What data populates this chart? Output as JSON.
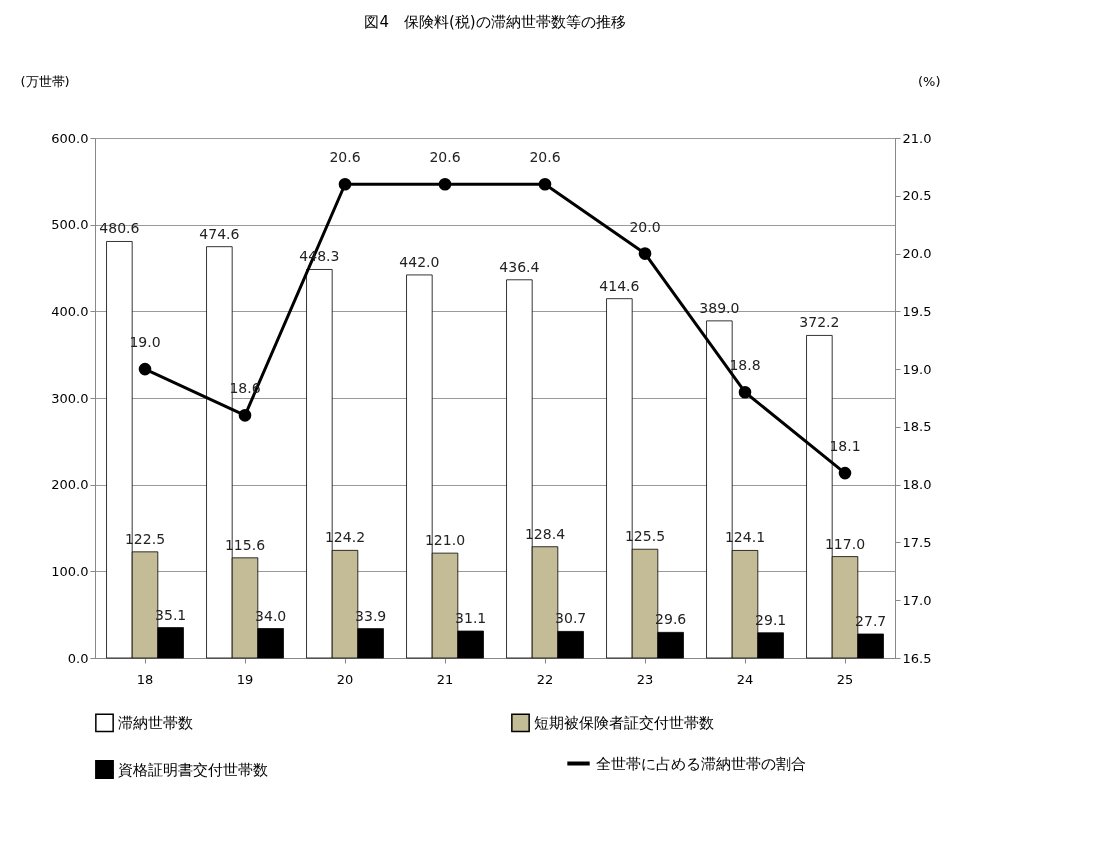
{
  "chart_data": {
    "type": "bar",
    "title": "図4　保険料(税)の滞納世帯数等の推移",
    "ylabel": "(万世帯)",
    "y2label": "(%)",
    "categories": [
      "18",
      "19",
      "20",
      "21",
      "22",
      "23",
      "24",
      "25"
    ],
    "series": [
      {
        "name": "滞納世帯数",
        "color": "#ffffff",
        "values": [
          480.6,
          474.6,
          448.3,
          442.0,
          436.4,
          414.6,
          389.0,
          372.2
        ],
        "value_labels": [
          "480.6",
          "474.6",
          "448.3",
          "442.0",
          "436.4",
          "414.6",
          "389.0",
          "372.2"
        ]
      },
      {
        "name": "短期被保険者証交付世帯数",
        "color": "#c4bc96",
        "values": [
          122.5,
          115.6,
          124.2,
          121.0,
          128.4,
          125.5,
          124.1,
          117.0
        ],
        "value_labels": [
          "122.5",
          "115.6",
          "124.2",
          "121.0",
          "128.4",
          "125.5",
          "124.1",
          "117.0"
        ]
      },
      {
        "name": "資格証明書交付世帯数",
        "color": "#000000",
        "values": [
          35.1,
          34.0,
          33.9,
          31.1,
          30.7,
          29.6,
          29.1,
          27.7
        ],
        "value_labels": [
          "35.1",
          "34.0",
          "33.9",
          "31.1",
          "30.7",
          "29.6",
          "29.1",
          "27.7"
        ]
      },
      {
        "name": "全世帯に占める滞納世帯の割合",
        "type": "line",
        "axis": "y2",
        "color": "#000000",
        "marker": "circle",
        "line_style": "solid",
        "values": [
          19.0,
          18.6,
          20.6,
          20.6,
          20.6,
          20.0,
          18.8,
          18.1
        ],
        "value_labels": [
          "19.0",
          "18.6",
          "20.6",
          "20.6",
          "20.6",
          "20.0",
          "18.8",
          "18.1"
        ]
      }
    ],
    "ylim": [
      0,
      600
    ],
    "yticks": [
      {
        "value": 0,
        "label": "0.0"
      },
      {
        "value": 100,
        "label": "100.0"
      },
      {
        "value": 200,
        "label": "200.0"
      },
      {
        "value": 300,
        "label": "300.0"
      },
      {
        "value": 400,
        "label": "400.0"
      },
      {
        "value": 500,
        "label": "500.0"
      },
      {
        "value": 600,
        "label": "600.0"
      }
    ],
    "y2lim": [
      16.5,
      21.0
    ],
    "y2ticks": [
      16.5,
      {
        "value": 17.0,
        "label": "17.0"
      },
      17.5,
      {
        "value": 18.0,
        "label": "18.0"
      },
      18.5,
      {
        "value": 19.0,
        "label": "19.0"
      },
      19.5,
      {
        "value": 20.0,
        "label": "20.0"
      },
      20.5,
      {
        "value": 21.0,
        "label": "21.0"
      }
    ],
    "grid": "y",
    "legend": "bottom"
  }
}
